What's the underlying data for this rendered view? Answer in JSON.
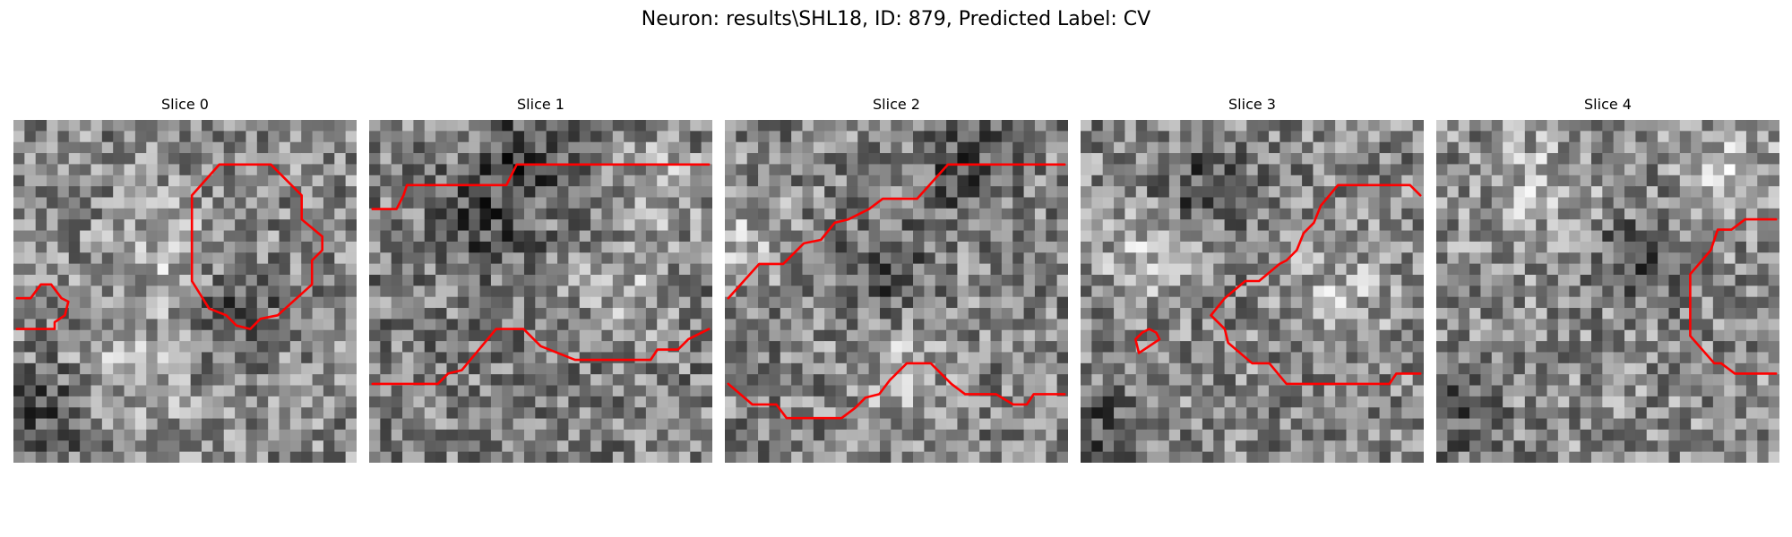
{
  "figure": {
    "title": "Neuron: results\\SHL18, ID: 879, Predicted Label: CV"
  },
  "colors": {
    "background": "#ffffff",
    "contour": "#ff0000",
    "colormap": "grayscale"
  },
  "panels": [
    {
      "title": "Slice 0",
      "image": {
        "kind": "grayscale-noise",
        "bright_regions": [
          [
            0.45,
            0.4
          ],
          [
            0.35,
            0.72
          ]
        ],
        "dark_regions": [
          [
            0.1,
            0.85
          ],
          [
            0.65,
            0.55
          ]
        ],
        "mean_intensity": 0.54
      },
      "contours": [
        [
          [
            0.52,
            0.22
          ],
          [
            0.6,
            0.13
          ],
          [
            0.75,
            0.13
          ],
          [
            0.84,
            0.22
          ],
          [
            0.84,
            0.29
          ],
          [
            0.9,
            0.34
          ],
          [
            0.9,
            0.38
          ],
          [
            0.87,
            0.41
          ],
          [
            0.87,
            0.48
          ],
          [
            0.77,
            0.57
          ],
          [
            0.72,
            0.58
          ],
          [
            0.69,
            0.61
          ],
          [
            0.65,
            0.6
          ],
          [
            0.62,
            0.57
          ],
          [
            0.57,
            0.55
          ],
          [
            0.52,
            0.47
          ],
          [
            0.52,
            0.22
          ]
        ],
        [
          [
            0.01,
            0.52
          ],
          [
            0.05,
            0.52
          ],
          [
            0.08,
            0.48
          ],
          [
            0.11,
            0.48
          ],
          [
            0.14,
            0.52
          ],
          [
            0.16,
            0.53
          ],
          [
            0.15,
            0.57
          ],
          [
            0.12,
            0.59
          ],
          [
            0.12,
            0.61
          ],
          [
            0.01,
            0.61
          ]
        ]
      ]
    },
    {
      "title": "Slice 1",
      "image": {
        "kind": "grayscale-noise",
        "bright_regions": [
          [
            0.75,
            0.5
          ],
          [
            0.85,
            0.2
          ]
        ],
        "dark_regions": [
          [
            0.45,
            0.1
          ],
          [
            0.35,
            0.3
          ]
        ],
        "mean_intensity": 0.5
      },
      "contours": [
        [
          [
            0.01,
            0.26
          ],
          [
            0.08,
            0.26
          ],
          [
            0.1,
            0.22
          ],
          [
            0.11,
            0.19
          ],
          [
            0.4,
            0.19
          ],
          [
            0.43,
            0.13
          ],
          [
            0.99,
            0.13
          ]
        ],
        [
          [
            0.01,
            0.77
          ],
          [
            0.2,
            0.77
          ],
          [
            0.23,
            0.74
          ],
          [
            0.27,
            0.73
          ],
          [
            0.37,
            0.61
          ],
          [
            0.45,
            0.61
          ],
          [
            0.5,
            0.66
          ],
          [
            0.55,
            0.68
          ],
          [
            0.6,
            0.7
          ],
          [
            0.82,
            0.7
          ],
          [
            0.84,
            0.67
          ],
          [
            0.9,
            0.67
          ],
          [
            0.93,
            0.64
          ],
          [
            0.99,
            0.61
          ]
        ]
      ]
    },
    {
      "title": "Slice 2",
      "image": {
        "kind": "grayscale-noise",
        "bright_regions": [
          [
            0.05,
            0.35
          ],
          [
            0.5,
            0.72
          ]
        ],
        "dark_regions": [
          [
            0.45,
            0.45
          ],
          [
            0.7,
            0.15
          ]
        ],
        "mean_intensity": 0.52
      },
      "contours": [
        [
          [
            0.01,
            0.52
          ],
          [
            0.1,
            0.42
          ],
          [
            0.17,
            0.42
          ],
          [
            0.23,
            0.36
          ],
          [
            0.28,
            0.35
          ],
          [
            0.32,
            0.3
          ],
          [
            0.36,
            0.29
          ],
          [
            0.42,
            0.26
          ],
          [
            0.46,
            0.23
          ],
          [
            0.56,
            0.23
          ],
          [
            0.65,
            0.13
          ],
          [
            0.99,
            0.13
          ]
        ],
        [
          [
            0.01,
            0.77
          ],
          [
            0.08,
            0.83
          ],
          [
            0.15,
            0.83
          ],
          [
            0.18,
            0.87
          ],
          [
            0.34,
            0.87
          ],
          [
            0.38,
            0.84
          ],
          [
            0.41,
            0.81
          ],
          [
            0.45,
            0.8
          ],
          [
            0.48,
            0.76
          ],
          [
            0.53,
            0.71
          ],
          [
            0.6,
            0.71
          ],
          [
            0.66,
            0.77
          ],
          [
            0.7,
            0.8
          ],
          [
            0.79,
            0.8
          ],
          [
            0.84,
            0.83
          ],
          [
            0.88,
            0.83
          ],
          [
            0.9,
            0.8
          ],
          [
            0.99,
            0.8
          ]
        ]
      ]
    },
    {
      "title": "Slice 3",
      "image": {
        "kind": "grayscale-noise",
        "bright_regions": [
          [
            0.75,
            0.5
          ],
          [
            0.2,
            0.4
          ]
        ],
        "dark_regions": [
          [
            0.05,
            0.9
          ],
          [
            0.35,
            0.2
          ]
        ],
        "mean_intensity": 0.53
      },
      "contours": [
        [
          [
            0.99,
            0.22
          ],
          [
            0.96,
            0.19
          ],
          [
            0.75,
            0.19
          ],
          [
            0.7,
            0.25
          ],
          [
            0.68,
            0.3
          ],
          [
            0.65,
            0.33
          ],
          [
            0.63,
            0.38
          ],
          [
            0.6,
            0.41
          ],
          [
            0.58,
            0.42
          ],
          [
            0.52,
            0.47
          ],
          [
            0.48,
            0.47
          ],
          [
            0.42,
            0.52
          ],
          [
            0.38,
            0.57
          ],
          [
            0.42,
            0.61
          ],
          [
            0.43,
            0.65
          ],
          [
            0.5,
            0.71
          ],
          [
            0.55,
            0.71
          ],
          [
            0.6,
            0.77
          ],
          [
            0.9,
            0.77
          ],
          [
            0.92,
            0.74
          ],
          [
            0.99,
            0.74
          ]
        ],
        [
          [
            0.17,
            0.68
          ],
          [
            0.16,
            0.64
          ],
          [
            0.18,
            0.62
          ],
          [
            0.2,
            0.61
          ],
          [
            0.22,
            0.62
          ],
          [
            0.23,
            0.64
          ],
          [
            0.2,
            0.66
          ],
          [
            0.17,
            0.68
          ]
        ]
      ]
    },
    {
      "title": "Slice 4",
      "image": {
        "kind": "grayscale-noise",
        "bright_regions": [
          [
            0.3,
            0.2
          ],
          [
            0.85,
            0.15
          ]
        ],
        "dark_regions": [
          [
            0.05,
            0.85
          ],
          [
            0.6,
            0.4
          ]
        ],
        "mean_intensity": 0.55
      },
      "contours": [
        [
          [
            0.99,
            0.29
          ],
          [
            0.9,
            0.29
          ],
          [
            0.86,
            0.32
          ],
          [
            0.82,
            0.32
          ],
          [
            0.8,
            0.38
          ],
          [
            0.74,
            0.45
          ],
          [
            0.74,
            0.63
          ],
          [
            0.81,
            0.71
          ],
          [
            0.83,
            0.71
          ],
          [
            0.87,
            0.74
          ],
          [
            0.99,
            0.74
          ]
        ]
      ]
    }
  ]
}
